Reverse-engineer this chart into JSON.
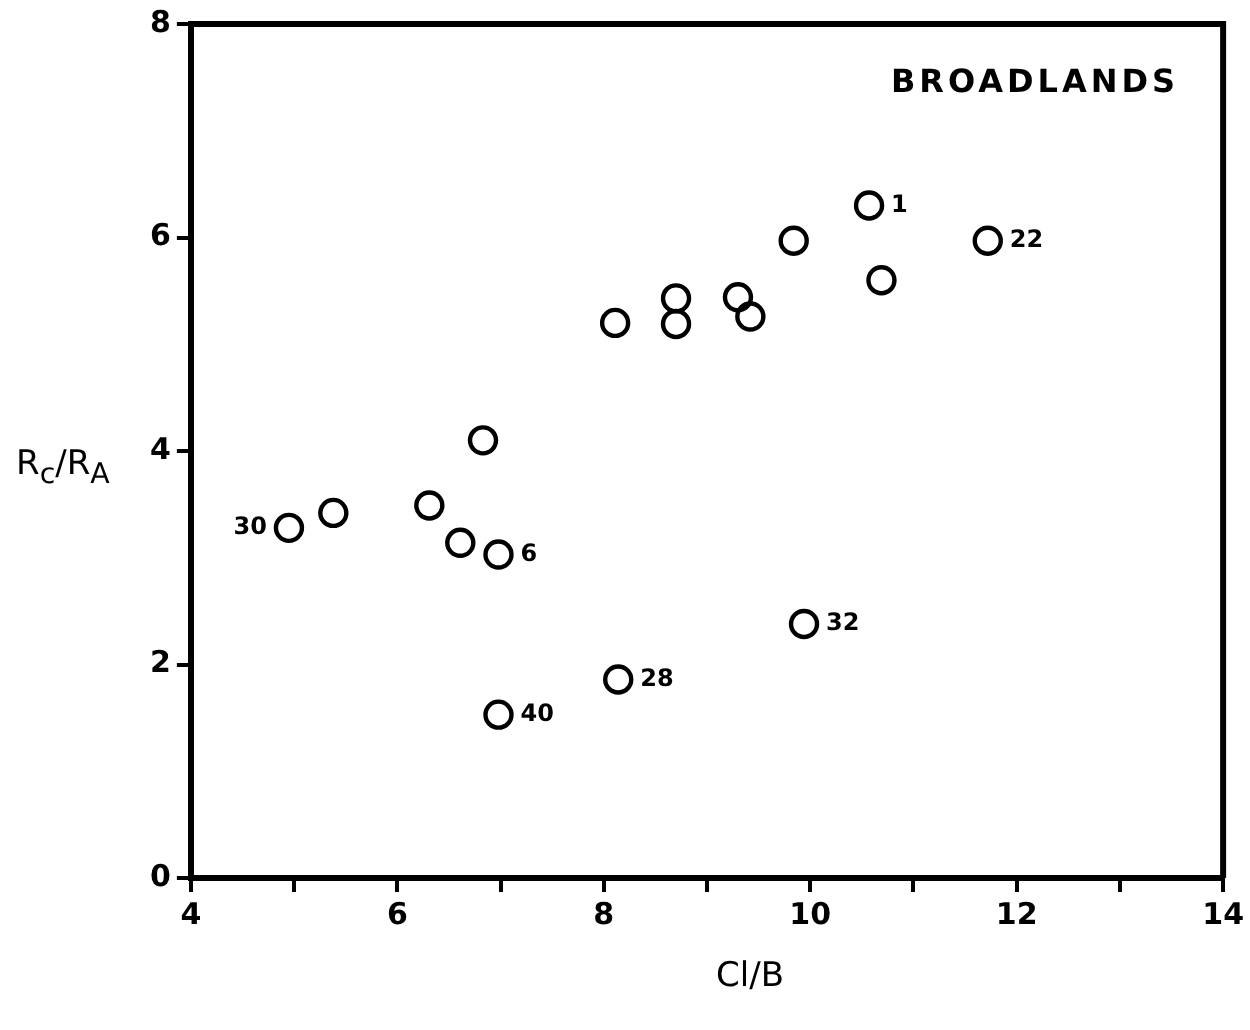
{
  "chart_data": {
    "type": "scatter",
    "xlabel": "Cl/B",
    "ylabel": "R$_{c}$/R$_{A}$",
    "x": [
      4.95,
      5.38,
      6.31,
      6.61,
      6.83,
      6.98,
      6.98,
      8.11,
      8.14,
      8.7,
      8.7,
      9.3,
      9.42,
      9.84,
      9.94,
      10.57,
      10.69,
      11.72
    ],
    "series": [
      {
        "color": "#000000",
        "values": [
          3.28,
          3.42,
          3.49,
          3.14,
          4.1,
          3.03,
          1.53,
          5.2,
          1.86,
          5.43,
          5.19,
          5.44,
          5.26,
          5.97,
          2.38,
          6.3,
          5.6,
          5.97
        ]
      }
    ],
    "xlim": [
      4,
      14
    ],
    "ylim": [
      0,
      8
    ],
    "xticks": [
      4,
      {
        "value": 5,
        "label": null
      },
      6,
      {
        "value": 7,
        "label": null
      },
      8,
      {
        "value": 9,
        "label": null
      },
      10,
      {
        "value": 11,
        "label": null
      },
      12,
      {
        "value": 13,
        "label": null
      },
      14
    ],
    "yticks": [
      0,
      2,
      4,
      6,
      8
    ],
    "grid": false,
    "legend": false,
    "marker": "circle",
    "annotations": [
      "BROADLANDS",
      {
        "text": "30",
        "x": 4.95,
        "y": 3.28
      },
      {
        "text": "6",
        "x": 6.98,
        "y": 3.03
      },
      {
        "text": "40",
        "x": 6.98,
        "y": 1.53
      },
      {
        "text": "28",
        "x": 8.14,
        "y": 1.86
      },
      {
        "text": "32",
        "x": 9.94,
        "y": 2.38
      },
      {
        "text": "1",
        "x": 10.57,
        "y": 6.3
      },
      {
        "text": "22",
        "x": 11.72,
        "y": 5.97
      }
    ]
  }
}
